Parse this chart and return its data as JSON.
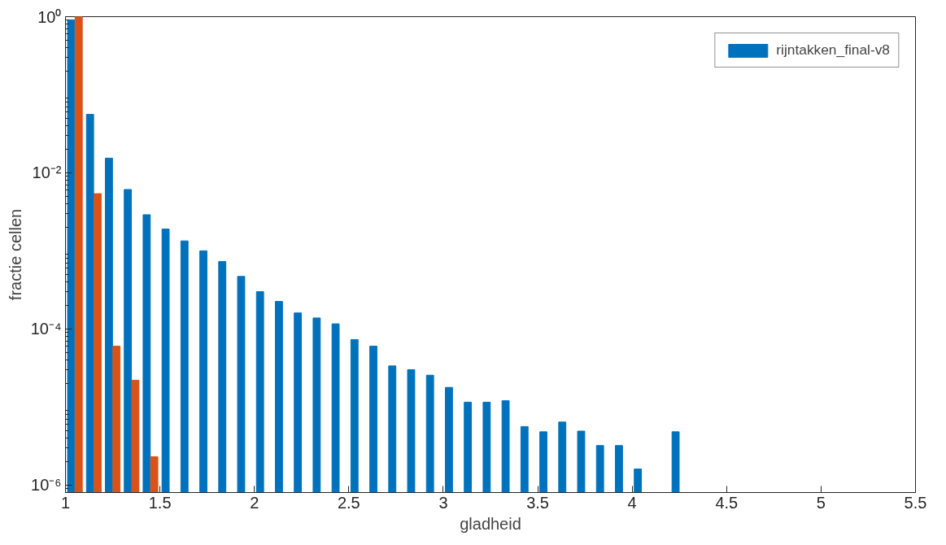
{
  "chart_data": {
    "type": "bar",
    "xlabel": "gladheid",
    "ylabel": "fractie cellen",
    "x": [
      1.05,
      1.15,
      1.25,
      1.35,
      1.45,
      1.55,
      1.65,
      1.75,
      1.85,
      1.95,
      2.05,
      2.15,
      2.25,
      2.35,
      2.45,
      2.55,
      2.65,
      2.75,
      2.85,
      2.95,
      3.05,
      3.15,
      3.25,
      3.35,
      3.45,
      3.55,
      3.65,
      3.75,
      3.85,
      3.95,
      4.05,
      4.15,
      4.25
    ],
    "series": [
      {
        "name": "rijntakken_final-v8",
        "color": "#0072bd",
        "values": [
          0.91,
          0.056,
          0.0154,
          0.0061,
          0.0029,
          0.0019,
          0.00134,
          0.001,
          0.00073,
          0.00047,
          0.0003,
          0.000225,
          0.00016,
          0.000138,
          0.000116,
          7.3e-05,
          6e-05,
          3.35e-05,
          3e-05,
          2.55e-05,
          1.78e-05,
          1.15e-05,
          1.15e-05,
          1.2e-05,
          5.6e-06,
          4.8e-06,
          6.4e-06,
          4.9e-06,
          3.2e-06,
          3.2e-06,
          1.6e-06,
          null,
          4.8e-06
        ]
      },
      {
        "color": "#d95319",
        "values": [
          1,
          0.0054,
          6e-05,
          2.2e-05,
          2.3e-06,
          null,
          null,
          null,
          null,
          null,
          null,
          null,
          null,
          null,
          null,
          null,
          null,
          null,
          null,
          null,
          null,
          null,
          null,
          null,
          null,
          null,
          null,
          null,
          null,
          null,
          null,
          null,
          null
        ]
      }
    ],
    "log": "y",
    "xlim": [
      1,
      5.5
    ],
    "xticks": [
      1,
      1.5,
      2,
      2.5,
      3,
      3.5,
      4,
      4.5,
      5,
      5.5
    ],
    "ylim": [
      8e-07,
      1
    ],
    "yticks": [
      {
        "value": 1e-06,
        "label": "10⁻⁶"
      },
      {
        "value": 0.0001,
        "label": "10⁻⁴"
      },
      {
        "value": 0.01,
        "label": "10⁻²"
      },
      {
        "value": 1,
        "label": "10⁰"
      }
    ],
    "legend": "top right",
    "grid": false
  }
}
